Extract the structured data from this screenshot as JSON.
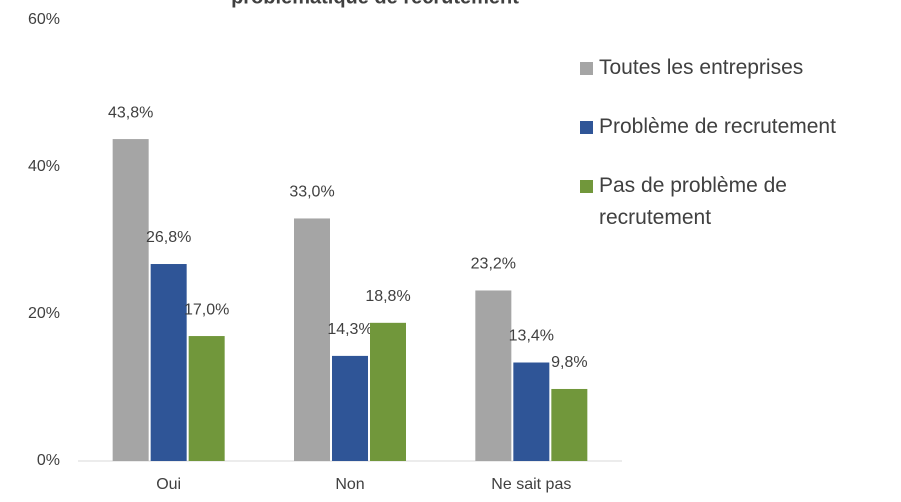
{
  "chart_data": {
    "type": "bar",
    "title": "problématique de recrutement",
    "categories": [
      "Oui",
      "Non",
      "Ne sait pas"
    ],
    "series": [
      {
        "name": "Toutes les entreprises",
        "color": "#a5a5a5",
        "values": [
          43.8,
          33.0,
          23.2
        ],
        "value_labels": [
          "43,8%",
          "33,0%",
          "23,2%"
        ]
      },
      {
        "name": "Problème de recrutement",
        "color": "#2f5597",
        "values": [
          26.8,
          14.3,
          13.4
        ],
        "value_labels": [
          "26,8%",
          "14,3%",
          "13,4%"
        ]
      },
      {
        "name": "Pas de problème de recrutement",
        "color": "#71973b",
        "values": [
          17.0,
          18.8,
          9.8
        ],
        "value_labels": [
          "17,0%",
          "18,8%",
          "9,8%"
        ]
      }
    ],
    "ylim": [
      0,
      60
    ],
    "yticks": [
      {
        "value": 0,
        "label": "0%"
      },
      {
        "value": 20,
        "label": "20%"
      },
      {
        "value": 40,
        "label": "40%"
      },
      {
        "value": 60,
        "label": "60%"
      }
    ],
    "legend": "right"
  }
}
